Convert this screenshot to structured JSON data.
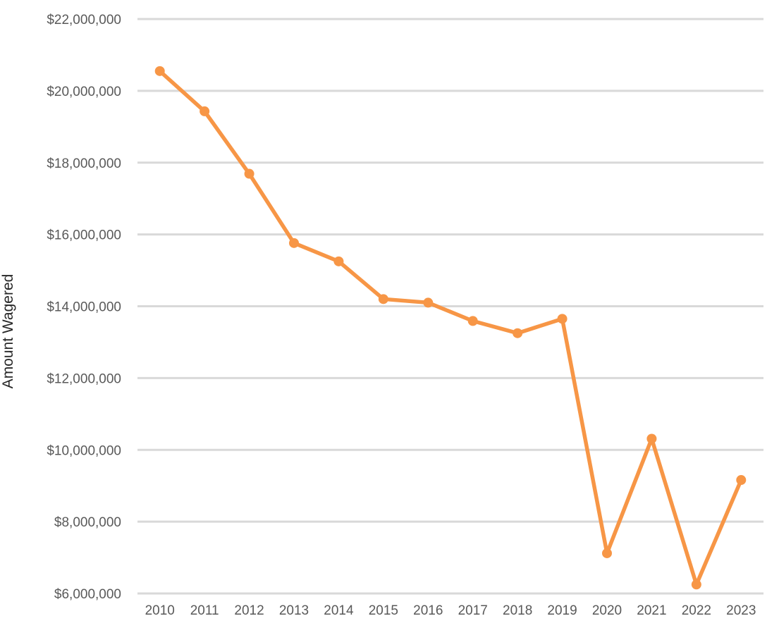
{
  "chart_data": {
    "type": "line",
    "title": "",
    "xlabel": "",
    "ylabel": "Amount Wagered",
    "ylim": [
      6000000,
      22000000
    ],
    "ytick_step": 2000000,
    "ytick_labels": [
      "$6,000,000",
      "$8,000,000",
      "$10,000,000",
      "$12,000,000",
      "$14,000,000",
      "$16,000,000",
      "$18,000,000",
      "$20,000,000",
      "$22,000,000"
    ],
    "categories": [
      "2010",
      "2011",
      "2012",
      "2013",
      "2014",
      "2015",
      "2016",
      "2017",
      "2018",
      "2019",
      "2020",
      "2021",
      "2022",
      "2023"
    ],
    "series": [
      {
        "name": "Amount Wagered",
        "color": "#F79646",
        "values": [
          20550000,
          19430000,
          17690000,
          15760000,
          15250000,
          14200000,
          14100000,
          13590000,
          13250000,
          13650000,
          7120000,
          10310000,
          6250000,
          9160000
        ]
      }
    ],
    "grid": true,
    "legend": "none"
  }
}
